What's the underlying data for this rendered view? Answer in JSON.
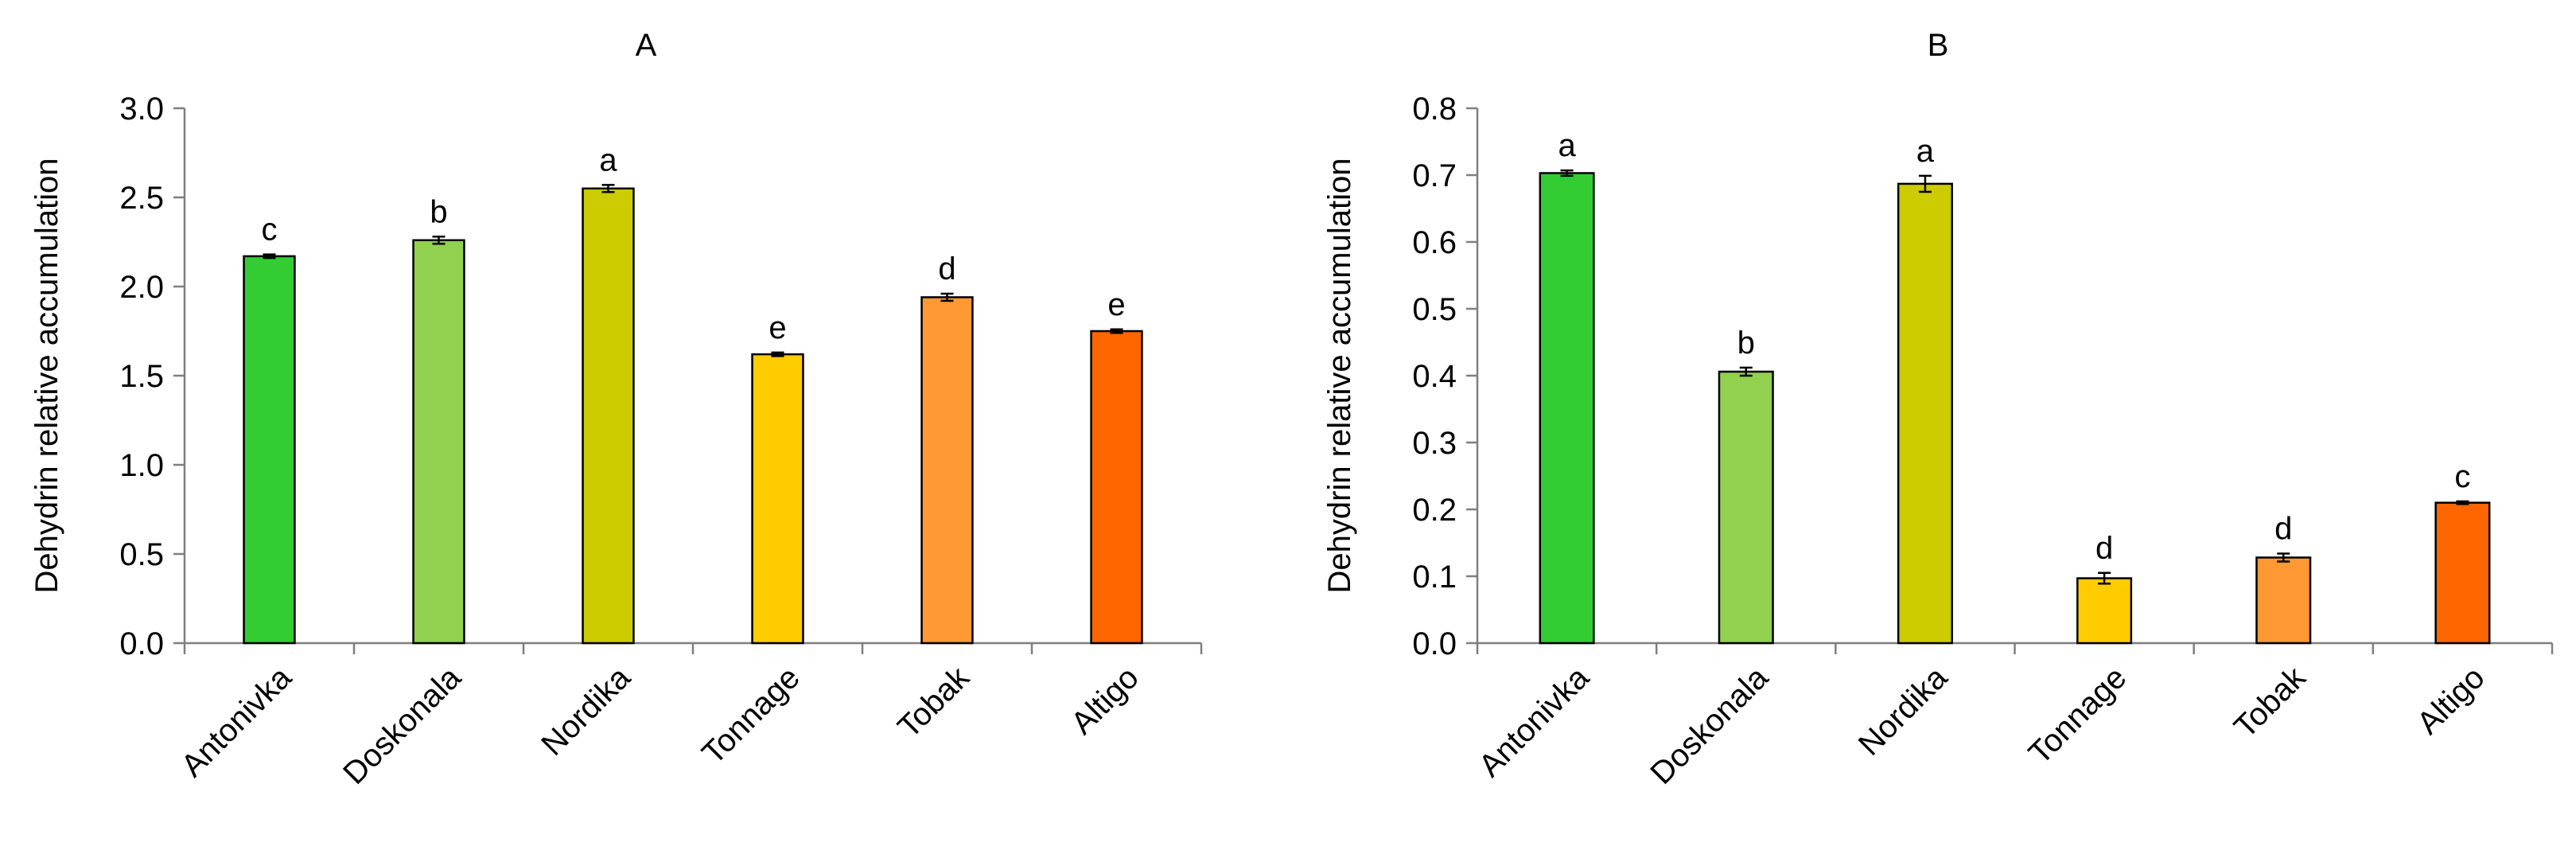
{
  "chart_data": [
    {
      "type": "bar",
      "panel_label": "A",
      "ylabel": "Dehydrin relative accumulation",
      "xlabel": "",
      "categories": [
        "Antonivka",
        "Doskonala",
        "Nordika",
        "Tonnage",
        "Tobak",
        "Altigo"
      ],
      "values": [
        2.17,
        2.26,
        2.55,
        1.62,
        1.94,
        1.75
      ],
      "errors": [
        0.01,
        0.02,
        0.02,
        0.01,
        0.02,
        0.01
      ],
      "significance_letters": [
        "c",
        "b",
        "a",
        "e",
        "d",
        "e"
      ],
      "bar_colors": [
        "#33cc33",
        "#92d050",
        "#cccc00",
        "#ffcc00",
        "#ff9933",
        "#ff6600"
      ],
      "ylim": [
        0,
        3.0
      ],
      "yticks": [
        0.0,
        0.5,
        1.0,
        1.5,
        2.0,
        2.5,
        3.0
      ],
      "ytick_labels": [
        "0.0",
        "0.5",
        "1.0",
        "1.5",
        "2.0",
        "2.5",
        "3.0"
      ],
      "grid": false,
      "legend": "none"
    },
    {
      "type": "bar",
      "panel_label": "B",
      "ylabel": "Dehydrin relative accumulation",
      "xlabel": "",
      "categories": [
        "Antonivka",
        "Doskonala",
        "Nordika",
        "Tonnage",
        "Tobak",
        "Altigo"
      ],
      "values": [
        0.703,
        0.406,
        0.687,
        0.097,
        0.128,
        0.21
      ],
      "errors": [
        0.004,
        0.006,
        0.012,
        0.008,
        0.006,
        0.002
      ],
      "significance_letters": [
        "a",
        "b",
        "a",
        "d",
        "d",
        "c"
      ],
      "bar_colors": [
        "#33cc33",
        "#92d050",
        "#cccc00",
        "#ffcc00",
        "#ff9933",
        "#ff6600"
      ],
      "ylim": [
        0,
        0.8
      ],
      "yticks": [
        0.0,
        0.1,
        0.2,
        0.3,
        0.4,
        0.5,
        0.6,
        0.7,
        0.8
      ],
      "ytick_labels": [
        "0.0",
        "0.1",
        "0.2",
        "0.3",
        "0.4",
        "0.5",
        "0.6",
        "0.7",
        "0.8"
      ],
      "grid": false,
      "legend": "none"
    }
  ]
}
